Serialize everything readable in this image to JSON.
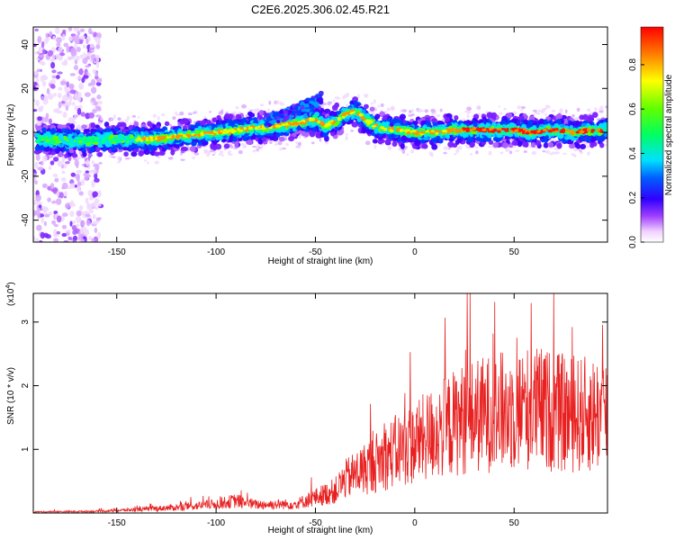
{
  "title": "C2E6.2025.306.02.45.R21",
  "chart_data": [
    {
      "type": "heatmap",
      "xlabel": "Height of straight line (km)",
      "ylabel": "Frequency (Hz)",
      "xlim": [
        -192,
        97
      ],
      "ylim": [
        -50,
        48
      ],
      "xticks": [
        -150,
        -100,
        -50,
        0,
        50
      ],
      "yticks": [
        -40,
        -20,
        0,
        20,
        40
      ],
      "colorbar": {
        "label": "Normalized spectral amplitude",
        "range": [
          0.0,
          0.97
        ],
        "ticks": [
          "0.0",
          "0.2",
          "0.4",
          "0.6",
          "0.8"
        ]
      },
      "ridge": {
        "x": [
          -190,
          -170,
          -150,
          -130,
          -110,
          -100,
          -90,
          -80,
          -70,
          -60,
          -55,
          -50,
          -45,
          -40,
          -35,
          -30,
          -25,
          -20,
          -10,
          0,
          10,
          20,
          30,
          40,
          50,
          60,
          70,
          80,
          90,
          97
        ],
        "y": [
          -3,
          -4,
          -3,
          -3,
          -1,
          0,
          1,
          2,
          3,
          4,
          5,
          6,
          3,
          5,
          8,
          10,
          6,
          3,
          1,
          0,
          0,
          1,
          1,
          1,
          1,
          0,
          1,
          0,
          1,
          1
        ]
      },
      "secondary_branch": {
        "x": [
          -75,
          -70,
          -65,
          -60,
          -55,
          -50,
          -47
        ],
        "y": [
          5,
          7,
          8,
          10,
          12,
          14,
          16
        ]
      }
    },
    {
      "type": "line",
      "xlabel": "Height of straight line (km)",
      "ylabel": "SNR (10 * v/v)",
      "multiplier": "(x10",
      "multiplier_exp": "4",
      "multiplier_close": ")",
      "xlim": [
        -192,
        97
      ],
      "ylim": [
        0,
        3.45
      ],
      "xticks": [
        -150,
        -100,
        -50,
        0,
        50
      ],
      "yticks": [
        1,
        2,
        3
      ],
      "color": "#e82020",
      "envelope": {
        "x": [
          -192,
          -160,
          -140,
          -120,
          -100,
          -90,
          -80,
          -60,
          -50,
          -40,
          -35,
          -25,
          -10,
          0,
          10,
          25,
          40,
          60,
          80,
          97
        ],
        "y": [
          0.02,
          0.03,
          0.06,
          0.1,
          0.16,
          0.22,
          0.15,
          0.16,
          0.28,
          0.4,
          0.6,
          0.8,
          1.1,
          1.25,
          1.45,
          1.7,
          1.8,
          1.9,
          1.75,
          1.8
        ]
      }
    }
  ]
}
